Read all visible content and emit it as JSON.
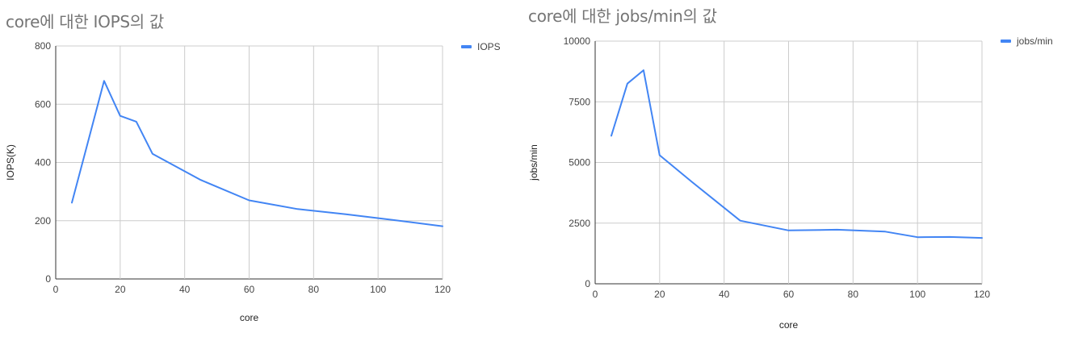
{
  "chart_data": [
    {
      "type": "line",
      "title": "core에 대한 IOPS의 값",
      "xlabel": "core",
      "ylabel": "IOPS(K)",
      "xlim": [
        0,
        120
      ],
      "ylim": [
        0,
        800
      ],
      "x_ticks": [
        0,
        20,
        40,
        60,
        80,
        100,
        120
      ],
      "y_ticks": [
        0,
        200,
        400,
        600,
        800
      ],
      "grid": true,
      "legend_position": "top-right",
      "color": "#4285f4",
      "series": [
        {
          "name": "IOPS",
          "x": [
            5,
            10,
            15,
            20,
            25,
            30,
            45,
            60,
            75,
            90,
            105,
            120
          ],
          "y": [
            262,
            470,
            680,
            560,
            540,
            430,
            340,
            270,
            240,
            222,
            202,
            181
          ]
        }
      ]
    },
    {
      "type": "line",
      "title": "core에 대한 jobs/min의 값",
      "xlabel": "core",
      "ylabel": "jobs/min",
      "xlim": [
        0,
        120
      ],
      "ylim": [
        0,
        10000
      ],
      "x_ticks": [
        0,
        20,
        40,
        60,
        80,
        100,
        120
      ],
      "y_ticks": [
        0,
        2500,
        5000,
        7500,
        10000
      ],
      "grid": true,
      "legend_position": "top-right",
      "color": "#4285f4",
      "series": [
        {
          "name": "jobs/min",
          "x": [
            5,
            10,
            15,
            20,
            30,
            45,
            60,
            75,
            90,
            100,
            110,
            120
          ],
          "y": [
            6100,
            8250,
            8800,
            5300,
            4200,
            2600,
            2200,
            2230,
            2150,
            1920,
            1930,
            1890
          ]
        }
      ]
    }
  ]
}
